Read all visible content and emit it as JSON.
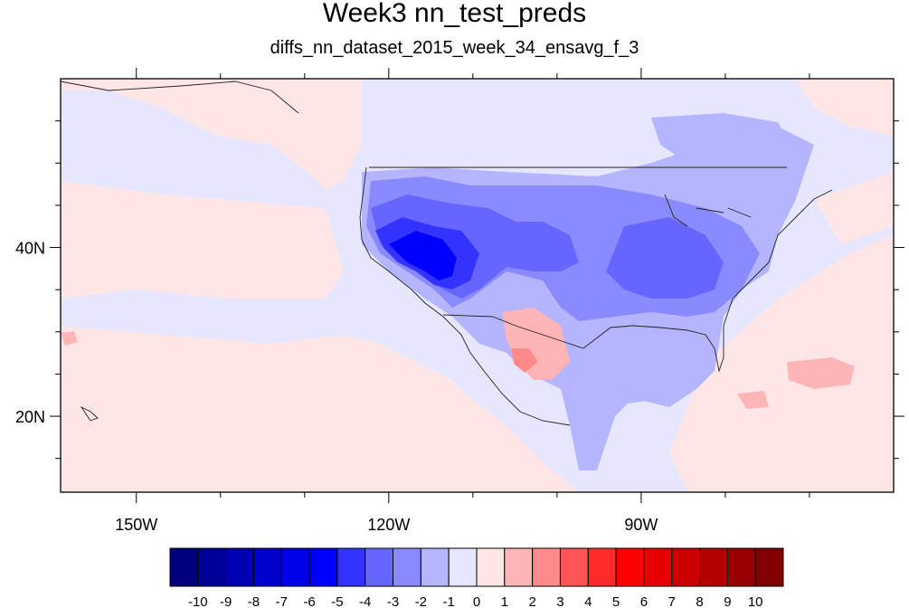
{
  "title": "Week3 nn_test_preds",
  "subtitle": "diffs_nn_dataset_2015_week_34_ensavg_f_3",
  "map": {
    "lon_labels": [
      "150W",
      "120W",
      "90W"
    ],
    "lat_labels": [
      "40N",
      "20N"
    ],
    "lon_range": [
      -159,
      -60
    ],
    "lat_range": [
      11,
      60
    ],
    "label_lons": [
      -150,
      -120,
      -90
    ],
    "label_lats": [
      40,
      20
    ],
    "minor_lons": [
      -140,
      -130,
      -110,
      -100,
      -80,
      -70
    ],
    "minor_lats": [
      15,
      25,
      30,
      35,
      45,
      50,
      55
    ]
  },
  "colorbar": {
    "labels": [
      "-10",
      "-9",
      "-8",
      "-7",
      "-6",
      "-5",
      "-4",
      "-3",
      "-2",
      "-1",
      "0",
      "1",
      "2",
      "3",
      "4",
      "5",
      "6",
      "7",
      "8",
      "9",
      "10"
    ],
    "colors": [
      "#00007f",
      "#000099",
      "#0000b3",
      "#0000cc",
      "#0000e6",
      "#0000ff",
      "#3333ff",
      "#6666ff",
      "#8a8aff",
      "#b5b5ff",
      "#e6e6ff",
      "#ffe6e6",
      "#ffb5b5",
      "#ff8a8a",
      "#ff5555",
      "#ff2b2b",
      "#ff0000",
      "#e60000",
      "#cc0000",
      "#b30000",
      "#990000",
      "#800000"
    ]
  }
}
